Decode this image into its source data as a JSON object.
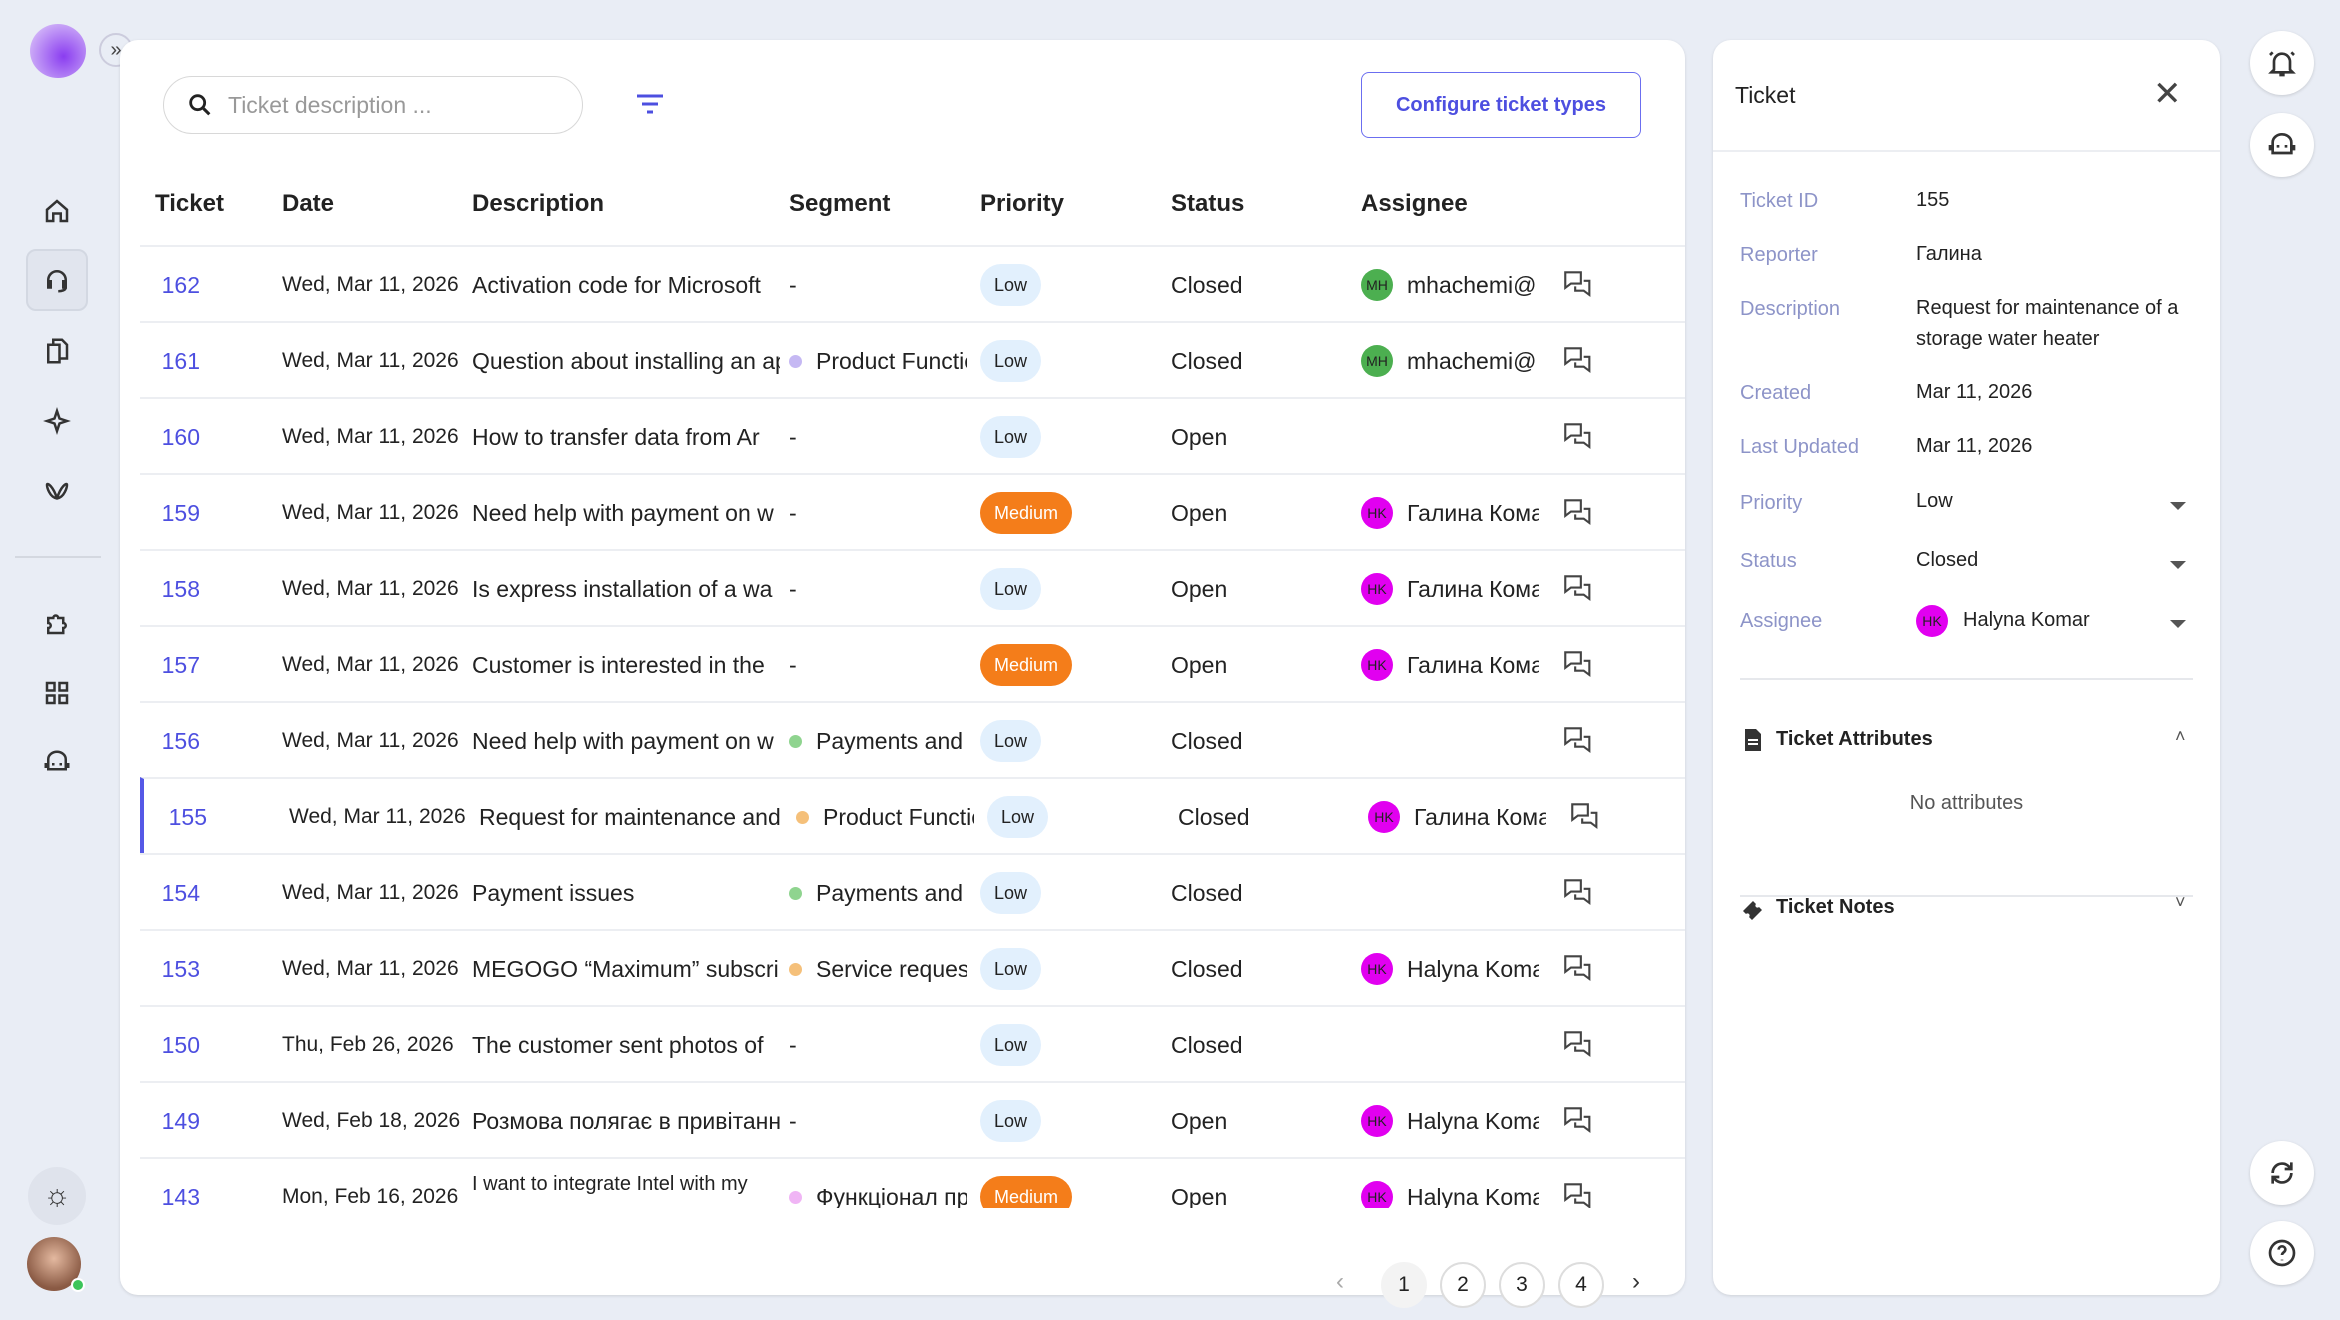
{
  "search": {
    "placeholder": "Ticket description ..."
  },
  "toolbar": {
    "configure_label": "Configure ticket types"
  },
  "columns": [
    "Ticket",
    "Date",
    "Description",
    "Segment",
    "Priority",
    "Status",
    "Assignee"
  ],
  "rows": [
    {
      "id": "162",
      "date": "Wed, Mar 11, 2026",
      "description": "Activation code for Microsoft",
      "segment": "-",
      "segment_color": "",
      "priority": "Low",
      "status": "Closed",
      "assignee": "mhachemi@",
      "initials": "MH",
      "avatar_color": "#4caf50"
    },
    {
      "id": "161",
      "date": "Wed, Mar 11, 2026",
      "description": "Question about installing an app",
      "segment": "Product Functionality",
      "segment_color": "#c5b8f3",
      "priority": "Low",
      "status": "Closed",
      "assignee": "mhachemi@",
      "initials": "MH",
      "avatar_color": "#4caf50"
    },
    {
      "id": "160",
      "date": "Wed, Mar 11, 2026",
      "description": "How to transfer data from Ar",
      "segment": "-",
      "segment_color": "",
      "priority": "Low",
      "status": "Open",
      "assignee": "",
      "initials": "",
      "avatar_color": ""
    },
    {
      "id": "159",
      "date": "Wed, Mar 11, 2026",
      "description": "Need help with payment on w",
      "segment": "-",
      "segment_color": "",
      "priority": "Medium",
      "status": "Open",
      "assignee": "Галина Комар",
      "initials": "HK",
      "avatar_color": "#e100f0"
    },
    {
      "id": "158",
      "date": "Wed, Mar 11, 2026",
      "description": "Is express installation of a wa",
      "segment": "-",
      "segment_color": "",
      "priority": "Low",
      "status": "Open",
      "assignee": "Галина Комар",
      "initials": "HK",
      "avatar_color": "#e100f0"
    },
    {
      "id": "157",
      "date": "Wed, Mar 11, 2026",
      "description": "Customer is interested in the",
      "segment": "-",
      "segment_color": "",
      "priority": "Medium",
      "status": "Open",
      "assignee": "Галина Комар",
      "initials": "HK",
      "avatar_color": "#e100f0"
    },
    {
      "id": "156",
      "date": "Wed, Mar 11, 2026",
      "description": "Need help with payment on w",
      "segment": "Payments and",
      "segment_color": "#8fd48f",
      "priority": "Low",
      "status": "Closed",
      "assignee": "",
      "initials": "",
      "avatar_color": ""
    },
    {
      "id": "155",
      "date": "Wed, Mar 11, 2026",
      "description": "Request for maintenance and",
      "segment": "Product Functionality",
      "segment_color": "#f5c07a",
      "priority": "Low",
      "status": "Closed",
      "assignee": "Галина Комар",
      "initials": "HK",
      "avatar_color": "#e100f0",
      "selected": true
    },
    {
      "id": "154",
      "date": "Wed, Mar 11, 2026",
      "description": "Payment issues",
      "segment": "Payments and",
      "segment_color": "#8fd48f",
      "priority": "Low",
      "status": "Closed",
      "assignee": "",
      "initials": "",
      "avatar_color": ""
    },
    {
      "id": "153",
      "date": "Wed, Mar 11, 2026",
      "description": "MEGOGO “Maximum” subscription",
      "segment": "Service request",
      "segment_color": "#f5c07a",
      "priority": "Low",
      "status": "Closed",
      "assignee": "Halyna Komar",
      "initials": "HK",
      "avatar_color": "#e100f0"
    },
    {
      "id": "150",
      "date": "Thu, Feb 26, 2026",
      "description": "The customer sent photos of",
      "segment": "-",
      "segment_color": "",
      "priority": "Low",
      "status": "Closed",
      "assignee": "",
      "initials": "",
      "avatar_color": ""
    },
    {
      "id": "149",
      "date": "Wed, Feb 18, 2026",
      "description": "Розмова полягає в привітанні",
      "segment": "-",
      "segment_color": "",
      "priority": "Low",
      "status": "Open",
      "assignee": "Halyna Komar",
      "initials": "HK",
      "avatar_color": "#e100f0"
    },
    {
      "id": "143",
      "date": "Mon, Feb 16, 2026",
      "description": "I want to integrate Intel with my",
      "segment": "Функціонал продукту",
      "segment_color": "#f0b5f5",
      "priority": "Medium",
      "status": "Open",
      "assignee": "Halyna Komar",
      "initials": "HK",
      "avatar_color": "#e100f0"
    }
  ],
  "pagination": {
    "pages": [
      "1",
      "2",
      "3",
      "4"
    ],
    "current": "1"
  },
  "panel": {
    "title": "Ticket",
    "fields": {
      "ticket_id_label": "Ticket ID",
      "ticket_id": "155",
      "reporter_label": "Reporter",
      "reporter": "Галина",
      "description_label": "Description",
      "description": "Request for maintenance of a storage water heater",
      "created_label": "Created",
      "created": "Mar 11, 2026",
      "updated_label": "Last Updated",
      "updated": "Mar 11, 2026",
      "priority_label": "Priority",
      "priority": "Low",
      "status_label": "Status",
      "status": "Closed",
      "assignee_label": "Assignee",
      "assignee": "Halyna Komar",
      "assignee_initials": "HK"
    },
    "attributes_title": "Ticket Attributes",
    "attributes_empty": "No attributes",
    "notes_title": "Ticket Notes"
  },
  "colors": {
    "accent": "#4d4fe0",
    "medium": "#f47d1a",
    "low": "#e2f0fd",
    "hk_avatar": "#e100f0",
    "mh_avatar": "#4caf50"
  }
}
